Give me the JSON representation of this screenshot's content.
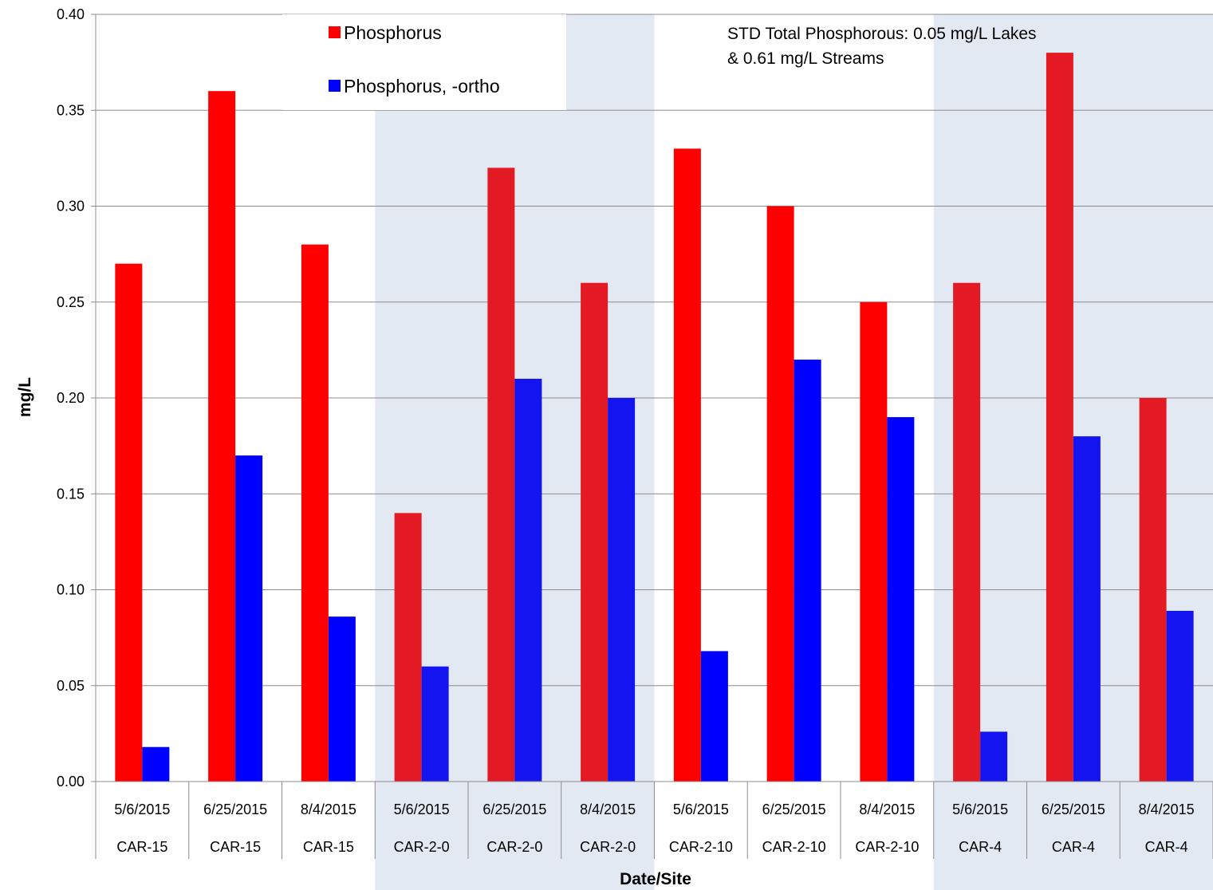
{
  "chart_data": {
    "type": "bar",
    "title": "",
    "xlabel": "Date/Site",
    "ylabel": "mg/L",
    "ylim": [
      0,
      0.4
    ],
    "yticks": [
      "0.00",
      "0.05",
      "0.10",
      "0.15",
      "0.20",
      "0.25",
      "0.30",
      "0.35",
      "0.40"
    ],
    "grid": true,
    "legend_position": "top-center",
    "categories": [
      {
        "date": "5/6/2015",
        "site": "CAR-15"
      },
      {
        "date": "6/25/2015",
        "site": "CAR-15"
      },
      {
        "date": "8/4/2015",
        "site": "CAR-15"
      },
      {
        "date": "5/6/2015",
        "site": "CAR-2-0"
      },
      {
        "date": "6/25/2015",
        "site": "CAR-2-0"
      },
      {
        "date": "8/4/2015",
        "site": "CAR-2-0"
      },
      {
        "date": "5/6/2015",
        "site": "CAR-2-10"
      },
      {
        "date": "6/25/2015",
        "site": "CAR-2-10"
      },
      {
        "date": "8/4/2015",
        "site": "CAR-2-10"
      },
      {
        "date": "5/6/2015",
        "site": "CAR-4"
      },
      {
        "date": "6/25/2015",
        "site": "CAR-4"
      },
      {
        "date": "8/4/2015",
        "site": "CAR-4"
      }
    ],
    "series": [
      {
        "name": "Phosphorus",
        "color": "#ff0000",
        "values": [
          0.27,
          0.36,
          0.28,
          0.14,
          0.32,
          0.26,
          0.33,
          0.3,
          0.25,
          0.26,
          0.38,
          0.2
        ]
      },
      {
        "name": "Phosphorus, -ortho",
        "color": "#0000ff",
        "values": [
          0.018,
          0.17,
          0.086,
          0.06,
          0.21,
          0.2,
          0.068,
          0.22,
          0.19,
          0.026,
          0.18,
          0.089
        ]
      }
    ],
    "shaded_site_groups": [
      "CAR-2-0",
      "CAR-4"
    ],
    "shade_color": "#e3e9f3",
    "annotation": [
      "STD Total Phosphorous: 0.05 mg/L Lakes",
      "& 0.61 mg/L Streams"
    ]
  }
}
